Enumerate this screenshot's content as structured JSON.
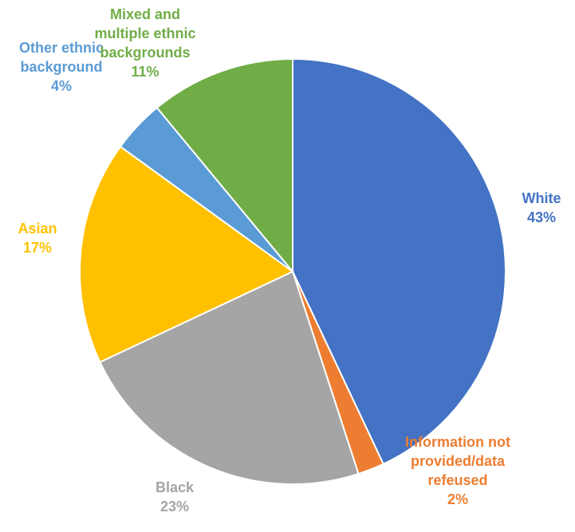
{
  "chart_data": {
    "type": "pie",
    "title": "",
    "legend": "none",
    "slices": [
      {
        "label_lines": [
          "White"
        ],
        "pct_label": "43%",
        "value": 43,
        "color": "#4472C4"
      },
      {
        "label_lines": [
          "Information not",
          "provided/data",
          "refeused"
        ],
        "pct_label": "2%",
        "value": 2,
        "color": "#ED7D31"
      },
      {
        "label_lines": [
          "Black"
        ],
        "pct_label": "23%",
        "value": 23,
        "color": "#A5A5A5"
      },
      {
        "label_lines": [
          "Asian"
        ],
        "pct_label": "17%",
        "value": 17,
        "color": "#FFC000"
      },
      {
        "label_lines": [
          "Other ethnic",
          "background"
        ],
        "pct_label": "4%",
        "value": 4,
        "color": "#5B9BD5"
      },
      {
        "label_lines": [
          "Mixed and",
          "multiple ethnic",
          "backgrounds"
        ],
        "pct_label": "11%",
        "value": 11,
        "color": "#70AD47"
      }
    ]
  }
}
